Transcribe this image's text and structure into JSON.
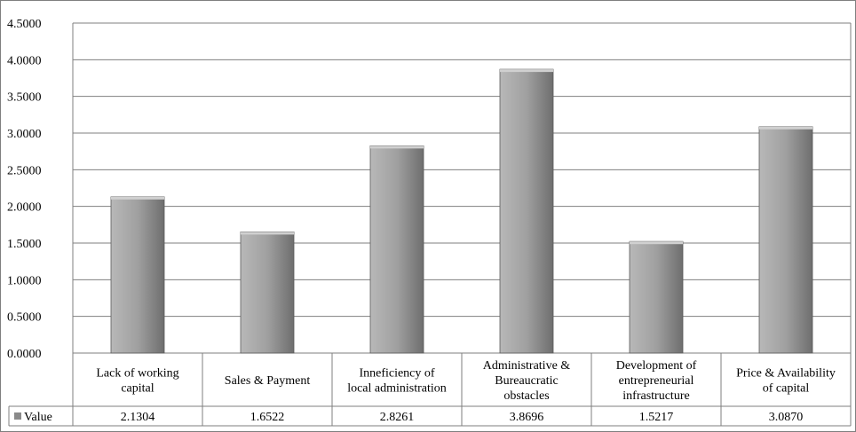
{
  "chart_data": {
    "type": "bar",
    "categories": [
      [
        "Lack of working",
        "capital"
      ],
      [
        "Sales & Payment"
      ],
      [
        "Inneficiency of",
        "local administration"
      ],
      [
        "Administrative &",
        "Bureaucratic",
        "obstacles"
      ],
      [
        "Development of",
        "entrepreneurial",
        "infrastructure"
      ],
      [
        "Price & Availability",
        "of capital"
      ]
    ],
    "series": [
      {
        "name": "Value",
        "values": [
          2.1304,
          1.6522,
          2.8261,
          3.8696,
          1.5217,
          3.087
        ],
        "labels": [
          "2.1304",
          "1.6522",
          "2.8261",
          "3.8696",
          "1.5217",
          "3.0870"
        ]
      }
    ],
    "yticks": [
      "0.0000",
      "0.5000",
      "1.0000",
      "1.5000",
      "2.0000",
      "2.5000",
      "3.0000",
      "3.5000",
      "4.0000",
      "4.5000"
    ],
    "ylim": [
      0,
      4.5
    ],
    "grid": true,
    "legend": "data-table",
    "colors": {
      "bar_light": "#b8b8b8",
      "bar_mid": "#a0a0a0",
      "bar_dark": "#6e6e6e",
      "grid": "#7f7f7f",
      "legend_key": "#8a8a8a"
    }
  }
}
